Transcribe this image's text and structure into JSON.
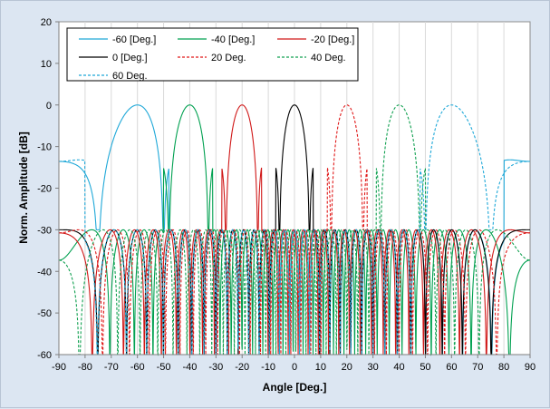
{
  "chart_data": {
    "type": "line",
    "title": "",
    "xlabel": "Angle [Deg.]",
    "ylabel": "Norm. Amplitude [dB]",
    "xlim": [
      -90,
      90
    ],
    "ylim": [
      -60,
      20
    ],
    "xticks": [
      -90,
      -80,
      -70,
      -60,
      -50,
      -40,
      -30,
      -20,
      -10,
      0,
      10,
      20,
      30,
      40,
      50,
      60,
      70,
      80,
      90
    ],
    "yticks": [
      -60,
      -50,
      -40,
      -30,
      -20,
      -10,
      0,
      10,
      20
    ],
    "grid": "vertical-major",
    "legend_position": "top-left",
    "sidelobe_level_db": -30,
    "series": [
      {
        "name": "-60 [Deg.]",
        "steer_deg": -60,
        "color": "#1fa8d8",
        "dash": "solid"
      },
      {
        "name": "-40 [Deg.]",
        "steer_deg": -40,
        "color": "#00a050",
        "dash": "solid"
      },
      {
        "name": "-20 [Deg.]",
        "steer_deg": -20,
        "color": "#d01818",
        "dash": "solid"
      },
      {
        "name": "0 [Deg.]",
        "steer_deg": 0,
        "color": "#000000",
        "dash": "solid"
      },
      {
        "name": "20 Deg.",
        "steer_deg": 20,
        "color": "#e01818",
        "dash": "dashed"
      },
      {
        "name": "40 Deg.",
        "steer_deg": 40,
        "color": "#10a050",
        "dash": "dashed"
      },
      {
        "name": "60 Deg.",
        "steer_deg": 60,
        "color": "#1fa8d8",
        "dash": "dashed"
      }
    ]
  }
}
